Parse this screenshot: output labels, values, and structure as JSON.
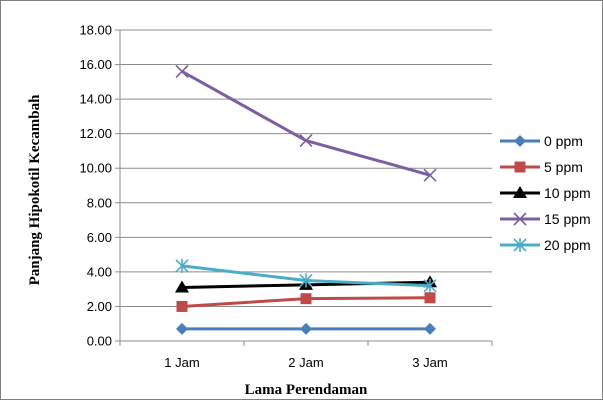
{
  "chart_data": {
    "type": "line",
    "categories": [
      "1 Jam",
      "2 Jam",
      "3 Jam"
    ],
    "xlabel": "Lama Perendaman",
    "ylabel": "Panjang Hipokotil  Kecambah",
    "ylim": [
      0,
      18
    ],
    "yticks": [
      "0.00",
      "2.00",
      "4.00",
      "6.00",
      "8.00",
      "10.00",
      "12.00",
      "14.00",
      "16.00",
      "18.00"
    ],
    "grid": true,
    "legend_position": "right",
    "series": [
      {
        "name": "0 ppm",
        "values": [
          0.7,
          0.7,
          0.7
        ],
        "color": "#4a7ebb",
        "marker": "diamond"
      },
      {
        "name": "5 ppm",
        "values": [
          2.0,
          2.45,
          2.5
        ],
        "color": "#be4b48",
        "marker": "square"
      },
      {
        "name": "10 ppm",
        "values": [
          3.1,
          3.25,
          3.4
        ],
        "color": "#000000",
        "marker": "triangle"
      },
      {
        "name": "15 ppm",
        "values": [
          15.6,
          11.6,
          9.6
        ],
        "color": "#7d5fa0",
        "marker": "x"
      },
      {
        "name": "20 ppm",
        "values": [
          4.35,
          3.5,
          3.2
        ],
        "color": "#4bacc6",
        "marker": "asterisk"
      }
    ]
  }
}
